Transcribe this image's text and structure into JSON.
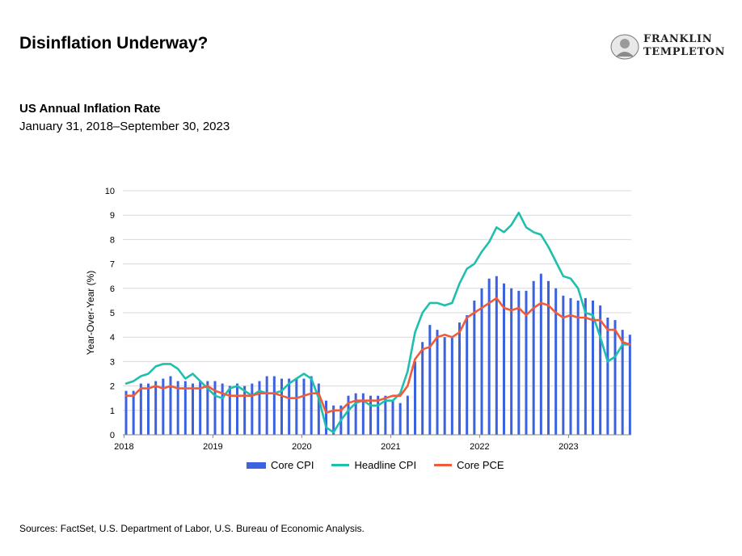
{
  "page": {
    "title": "Disinflation Underway?",
    "sources": "Sources: FactSet, U.S. Department of Labor, U.S. Bureau of Economic Analysis."
  },
  "logo": {
    "line1": "FRANKLIN",
    "line2": "TEMPLETON"
  },
  "chart_data": {
    "type": "bar",
    "title": "US Annual Inflation Rate",
    "subtitle": "January 31, 2018–September 30, 2023",
    "xlabel": "",
    "ylabel": "Year-Over-Year (%)",
    "ylim": [
      0,
      10
    ],
    "yticks": [
      0,
      1,
      2,
      3,
      4,
      5,
      6,
      7,
      8,
      9,
      10
    ],
    "xticks": [
      "2018",
      "2019",
      "2020",
      "2021",
      "2022",
      "2023"
    ],
    "grid": "horizontal",
    "legend_position": "bottom",
    "x": [
      "2018-01",
      "2018-02",
      "2018-03",
      "2018-04",
      "2018-05",
      "2018-06",
      "2018-07",
      "2018-08",
      "2018-09",
      "2018-10",
      "2018-11",
      "2018-12",
      "2019-01",
      "2019-02",
      "2019-03",
      "2019-04",
      "2019-05",
      "2019-06",
      "2019-07",
      "2019-08",
      "2019-09",
      "2019-10",
      "2019-11",
      "2019-12",
      "2020-01",
      "2020-02",
      "2020-03",
      "2020-04",
      "2020-05",
      "2020-06",
      "2020-07",
      "2020-08",
      "2020-09",
      "2020-10",
      "2020-11",
      "2020-12",
      "2021-01",
      "2021-02",
      "2021-03",
      "2021-04",
      "2021-05",
      "2021-06",
      "2021-07",
      "2021-08",
      "2021-09",
      "2021-10",
      "2021-11",
      "2021-12",
      "2022-01",
      "2022-02",
      "2022-03",
      "2022-04",
      "2022-05",
      "2022-06",
      "2022-07",
      "2022-08",
      "2022-09",
      "2022-10",
      "2022-11",
      "2022-12",
      "2023-01",
      "2023-02",
      "2023-03",
      "2023-04",
      "2023-05",
      "2023-06",
      "2023-07",
      "2023-08",
      "2023-09"
    ],
    "series": [
      {
        "name": "Core CPI",
        "kind": "bar",
        "color": "#3b63e0",
        "values": [
          1.8,
          1.8,
          2.1,
          2.1,
          2.2,
          2.3,
          2.4,
          2.2,
          2.2,
          2.1,
          2.2,
          2.2,
          2.2,
          2.1,
          2.0,
          2.1,
          2.0,
          2.1,
          2.2,
          2.4,
          2.4,
          2.3,
          2.3,
          2.3,
          2.3,
          2.4,
          2.1,
          1.4,
          1.2,
          1.2,
          1.6,
          1.7,
          1.7,
          1.6,
          1.6,
          1.6,
          1.4,
          1.3,
          1.6,
          3.0,
          3.8,
          4.5,
          4.3,
          4.0,
          4.0,
          4.6,
          4.9,
          5.5,
          6.0,
          6.4,
          6.5,
          6.2,
          6.0,
          5.9,
          5.9,
          6.3,
          6.6,
          6.3,
          6.0,
          5.7,
          5.6,
          5.5,
          5.6,
          5.5,
          5.3,
          4.8,
          4.7,
          4.3,
          4.1
        ]
      },
      {
        "name": "Headline CPI",
        "kind": "line",
        "color": "#1fbfae",
        "values": [
          2.1,
          2.2,
          2.4,
          2.5,
          2.8,
          2.9,
          2.9,
          2.7,
          2.3,
          2.5,
          2.2,
          1.9,
          1.6,
          1.5,
          1.9,
          2.0,
          1.8,
          1.6,
          1.8,
          1.7,
          1.7,
          1.8,
          2.1,
          2.3,
          2.5,
          2.3,
          1.5,
          0.3,
          0.1,
          0.6,
          1.0,
          1.3,
          1.4,
          1.2,
          1.2,
          1.4,
          1.4,
          1.7,
          2.6,
          4.2,
          5.0,
          5.4,
          5.4,
          5.3,
          5.4,
          6.2,
          6.8,
          7.0,
          7.5,
          7.9,
          8.5,
          8.3,
          8.6,
          9.1,
          8.5,
          8.3,
          8.2,
          7.7,
          7.1,
          6.5,
          6.4,
          6.0,
          5.0,
          4.9,
          4.0,
          3.0,
          3.2,
          3.7,
          3.7
        ]
      },
      {
        "name": "Core PCE",
        "kind": "line",
        "color": "#f15a3a",
        "values": [
          1.6,
          1.6,
          1.9,
          1.9,
          2.0,
          1.9,
          2.0,
          1.9,
          1.9,
          1.9,
          1.9,
          2.0,
          1.8,
          1.7,
          1.6,
          1.6,
          1.6,
          1.6,
          1.7,
          1.7,
          1.7,
          1.6,
          1.5,
          1.5,
          1.6,
          1.7,
          1.7,
          0.9,
          1.0,
          1.0,
          1.3,
          1.4,
          1.4,
          1.4,
          1.4,
          1.5,
          1.6,
          1.6,
          2.0,
          3.1,
          3.5,
          3.6,
          4.0,
          4.1,
          4.0,
          4.2,
          4.8,
          5.0,
          5.2,
          5.4,
          5.6,
          5.2,
          5.1,
          5.2,
          4.9,
          5.2,
          5.4,
          5.3,
          5.0,
          4.8,
          4.9,
          4.8,
          4.8,
          4.7,
          4.7,
          4.3,
          4.3,
          3.8,
          3.7
        ]
      }
    ]
  }
}
